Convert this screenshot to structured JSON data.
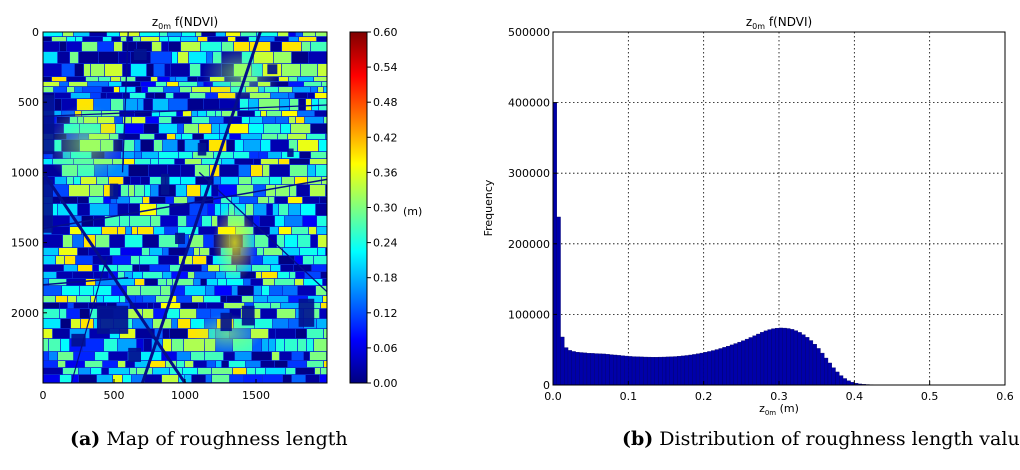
{
  "chart_data": [
    {
      "type": "heatmap",
      "title_base": "z",
      "title_sub": "0m",
      "title_rest": " f(NDVI)",
      "x_ticks": [
        "0",
        "500",
        "1000",
        "1500"
      ],
      "y_ticks": [
        "0",
        "500",
        "1000",
        "1500",
        "2000"
      ],
      "xlim": [
        0,
        2000
      ],
      "ylim": [
        2500,
        0
      ],
      "colorbar": {
        "ticks": [
          "0.00",
          "0.06",
          "0.12",
          "0.18",
          "0.24",
          "0.30",
          "0.36",
          "0.42",
          "0.48",
          "0.54",
          "0.60"
        ],
        "unit": "(m)",
        "range": [
          0,
          0.6
        ],
        "colormap": [
          "#00007f",
          "#0000ff",
          "#007fff",
          "#00ffff",
          "#7fff7f",
          "#ffff00",
          "#ff7f00",
          "#ff0000",
          "#7f0000"
        ]
      },
      "caption_label": "(a)",
      "caption_text": " Map of roughness length"
    },
    {
      "type": "bar",
      "title_base": "z",
      "title_sub": "0m",
      "title_rest": " f(NDVI)",
      "xlabel_base": "z",
      "xlabel_sub": "0m",
      "xlabel_rest": " (m)",
      "ylabel": "Frequency",
      "xlim": [
        0,
        0.6
      ],
      "ylim": [
        0,
        500000
      ],
      "grid": true,
      "bar_color": "#0000aa",
      "x_ticks": [
        "0.0",
        "0.1",
        "0.2",
        "0.3",
        "0.4",
        "0.5",
        "0.6"
      ],
      "y_ticks": [
        "0",
        "100000",
        "200000",
        "300000",
        "400000",
        "500000"
      ],
      "bin_width": 0.005,
      "bin_start": 0,
      "values": [
        400000,
        238000,
        68000,
        53000,
        49000,
        47500,
        46500,
        46000,
        45500,
        45000,
        44800,
        44500,
        44200,
        44000,
        43500,
        43000,
        42500,
        42000,
        41500,
        41000,
        40500,
        40200,
        40000,
        39800,
        39600,
        39500,
        39400,
        39400,
        39500,
        39600,
        39800,
        40000,
        40300,
        40700,
        41200,
        41800,
        42500,
        43300,
        44200,
        45200,
        46300,
        47500,
        48800,
        50200,
        51700,
        53300,
        55000,
        56800,
        58700,
        60700,
        62800,
        65000,
        67300,
        69700,
        72200,
        74600,
        76700,
        78500,
        79800,
        80500,
        80800,
        80600,
        80000,
        78800,
        77000,
        74500,
        71300,
        67500,
        63000,
        57800,
        51800,
        45200,
        38200,
        31200,
        24500,
        18500,
        13300,
        9200,
        6000,
        3800,
        2400,
        1500,
        1000,
        700,
        500,
        350,
        250,
        180,
        120,
        80,
        50,
        30,
        20,
        10,
        5
      ],
      "caption_label": "(b)",
      "caption_text": " Distribution of roughness length values"
    }
  ]
}
